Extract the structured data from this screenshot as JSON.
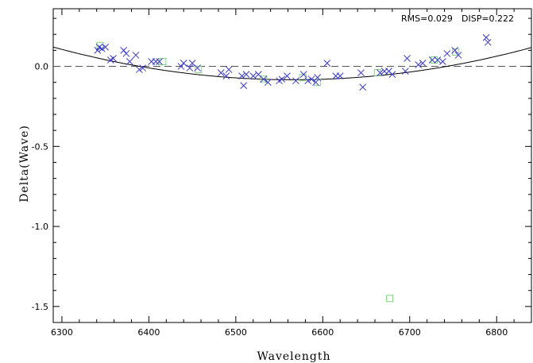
{
  "chart_data": {
    "type": "scatter",
    "xlabel": "Wavelength",
    "ylabel": "Delta(Wave)",
    "xlim": [
      6290,
      6840
    ],
    "ylim": [
      -1.6,
      0.36
    ],
    "xticks": [
      6300,
      6400,
      6500,
      6600,
      6700,
      6800
    ],
    "yticks": [
      0.0,
      -0.5,
      -1.0,
      -1.5
    ],
    "xtick_labels": [
      "6300",
      "6400",
      "6500",
      "6600",
      "6700",
      "6800"
    ],
    "ytick_labels": [
      "0.0",
      "-0.5",
      "-1.0",
      "-1.5"
    ],
    "annotations": {
      "rms": "RMS=0.029",
      "disp": "DISP=0.222"
    },
    "reference_line": {
      "y": 0.0,
      "style": "dashed"
    },
    "fit_curve": {
      "type": "polynomial",
      "coefficients": [
        -0.0836,
        0.0,
        2.68e-06
      ],
      "center_x": 6566
    },
    "colors": {
      "crosses": "#3a3acb",
      "squares": "#7ed87e",
      "axes": "#000000"
    },
    "series": [
      {
        "marker": "x",
        "points": [
          [
            6341,
            0.1
          ],
          [
            6343,
            0.12
          ],
          [
            6346,
            0.11
          ],
          [
            6350,
            0.12
          ],
          [
            6356,
            0.04
          ],
          [
            6359,
            0.05
          ],
          [
            6371,
            0.1
          ],
          [
            6374,
            0.08
          ],
          [
            6378,
            0.03
          ],
          [
            6385,
            0.07
          ],
          [
            6389,
            -0.02
          ],
          [
            6393,
            -0.01
          ],
          [
            6403,
            0.03
          ],
          [
            6408,
            0.03
          ],
          [
            6412,
            0.03
          ],
          [
            6437,
            0.0
          ],
          [
            6440,
            0.02
          ],
          [
            6447,
            -0.01
          ],
          [
            6450,
            0.02
          ],
          [
            6456,
            -0.01
          ],
          [
            6483,
            -0.04
          ],
          [
            6489,
            -0.06
          ],
          [
            6492,
            -0.02
          ],
          [
            6507,
            -0.06
          ],
          [
            6509,
            -0.12
          ],
          [
            6512,
            -0.05
          ],
          [
            6520,
            -0.06
          ],
          [
            6526,
            -0.05
          ],
          [
            6532,
            -0.08
          ],
          [
            6537,
            -0.1
          ],
          [
            6550,
            -0.09
          ],
          [
            6553,
            -0.08
          ],
          [
            6559,
            -0.06
          ],
          [
            6569,
            -0.09
          ],
          [
            6578,
            -0.05
          ],
          [
            6583,
            -0.09
          ],
          [
            6587,
            -0.08
          ],
          [
            6592,
            -0.1
          ],
          [
            6594,
            -0.07
          ],
          [
            6605,
            0.02
          ],
          [
            6615,
            -0.06
          ],
          [
            6620,
            -0.06
          ],
          [
            6644,
            -0.04
          ],
          [
            6646,
            -0.13
          ],
          [
            6666,
            -0.04
          ],
          [
            6671,
            -0.03
          ],
          [
            6676,
            -0.03
          ],
          [
            6680,
            -0.05
          ],
          [
            6695,
            -0.03
          ],
          [
            6697,
            0.05
          ],
          [
            6710,
            0.01
          ],
          [
            6715,
            0.02
          ],
          [
            6726,
            0.04
          ],
          [
            6732,
            0.04
          ],
          [
            6738,
            0.03
          ],
          [
            6743,
            0.08
          ],
          [
            6752,
            0.1
          ],
          [
            6756,
            0.07
          ],
          [
            6788,
            0.18
          ],
          [
            6790,
            0.15
          ]
        ]
      },
      {
        "marker": "square",
        "points": [
          [
            6344,
            0.13
          ],
          [
            6416,
            0.03
          ],
          [
            6457,
            -0.02
          ],
          [
            6532,
            -0.08
          ],
          [
            6577,
            -0.07
          ],
          [
            6594,
            -0.1
          ],
          [
            6663,
            -0.04
          ],
          [
            6677,
            -1.45
          ],
          [
            6728,
            0.04
          ],
          [
            6753,
            0.09
          ]
        ]
      }
    ]
  }
}
